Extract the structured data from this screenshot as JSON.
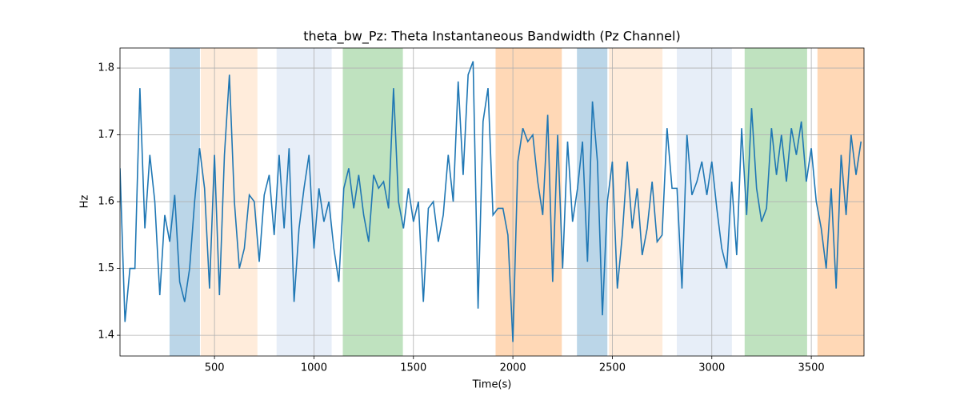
{
  "chart_data": {
    "type": "line",
    "title": "theta_bw_Pz: Theta Instantaneous Bandwidth (Pz Channel)",
    "x_label": "Time(s)",
    "y_label": "Hz",
    "xlim": [
      25,
      3765
    ],
    "ylim": [
      1.369,
      1.83
    ],
    "xticks": [
      500,
      1000,
      1500,
      2000,
      2500,
      3000,
      3500
    ],
    "yticks": [
      1.4,
      1.5,
      1.6,
      1.7,
      1.8
    ],
    "grid": true,
    "shaded_regions": [
      {
        "start": 274,
        "end": 427,
        "color": "#1f77b4",
        "opacity": 0.3
      },
      {
        "start": 431,
        "end": 716,
        "color": "#ff7f0e",
        "opacity": 0.15
      },
      {
        "start": 812,
        "end": 1089,
        "color": "#aec7e8",
        "opacity": 0.3
      },
      {
        "start": 1145,
        "end": 1447,
        "color": "#2ca02c",
        "opacity": 0.3
      },
      {
        "start": 1913,
        "end": 2246,
        "color": "#ff7f0e",
        "opacity": 0.3
      },
      {
        "start": 2322,
        "end": 2475,
        "color": "#1f77b4",
        "opacity": 0.3
      },
      {
        "start": 2483,
        "end": 2752,
        "color": "#ff7f0e",
        "opacity": 0.15
      },
      {
        "start": 2824,
        "end": 3101,
        "color": "#aec7e8",
        "opacity": 0.3
      },
      {
        "start": 3165,
        "end": 3479,
        "color": "#2ca02c",
        "opacity": 0.3
      },
      {
        "start": 3531,
        "end": 3765,
        "color": "#ff7f0e",
        "opacity": 0.3
      }
    ],
    "x": [
      25,
      50,
      75,
      100,
      125,
      150,
      175,
      200,
      225,
      250,
      275,
      300,
      325,
      350,
      375,
      400,
      425,
      450,
      475,
      500,
      525,
      550,
      575,
      600,
      625,
      650,
      675,
      700,
      725,
      750,
      775,
      800,
      825,
      850,
      875,
      900,
      925,
      950,
      975,
      1000,
      1025,
      1050,
      1075,
      1100,
      1125,
      1150,
      1175,
      1200,
      1225,
      1250,
      1275,
      1300,
      1325,
      1350,
      1375,
      1400,
      1425,
      1450,
      1475,
      1500,
      1525,
      1550,
      1575,
      1600,
      1625,
      1650,
      1675,
      1700,
      1725,
      1750,
      1775,
      1800,
      1825,
      1850,
      1875,
      1900,
      1925,
      1950,
      1975,
      2000,
      2025,
      2050,
      2075,
      2100,
      2125,
      2150,
      2175,
      2200,
      2225,
      2250,
      2275,
      2300,
      2325,
      2350,
      2375,
      2400,
      2425,
      2450,
      2475,
      2500,
      2525,
      2550,
      2575,
      2600,
      2625,
      2650,
      2675,
      2700,
      2725,
      2750,
      2775,
      2800,
      2825,
      2850,
      2875,
      2900,
      2925,
      2950,
      2975,
      3000,
      3025,
      3050,
      3075,
      3100,
      3125,
      3150,
      3175,
      3200,
      3225,
      3250,
      3275,
      3300,
      3325,
      3350,
      3375,
      3400,
      3425,
      3450,
      3475,
      3500,
      3525,
      3550,
      3575,
      3600,
      3625,
      3650,
      3675,
      3700,
      3725,
      3750
    ],
    "series": [
      {
        "name": "theta_bw_Pz",
        "color": "#1f77b4",
        "values": [
          1.65,
          1.42,
          1.5,
          1.5,
          1.77,
          1.56,
          1.67,
          1.6,
          1.46,
          1.58,
          1.54,
          1.61,
          1.48,
          1.45,
          1.5,
          1.6,
          1.68,
          1.62,
          1.47,
          1.67,
          1.46,
          1.67,
          1.79,
          1.6,
          1.5,
          1.53,
          1.61,
          1.6,
          1.51,
          1.61,
          1.64,
          1.55,
          1.67,
          1.56,
          1.68,
          1.45,
          1.56,
          1.62,
          1.67,
          1.53,
          1.62,
          1.57,
          1.6,
          1.53,
          1.48,
          1.62,
          1.65,
          1.59,
          1.64,
          1.58,
          1.54,
          1.64,
          1.62,
          1.63,
          1.59,
          1.77,
          1.6,
          1.56,
          1.62,
          1.57,
          1.6,
          1.45,
          1.59,
          1.6,
          1.54,
          1.58,
          1.67,
          1.6,
          1.78,
          1.64,
          1.79,
          1.81,
          1.44,
          1.72,
          1.77,
          1.58,
          1.59,
          1.59,
          1.55,
          1.39,
          1.66,
          1.71,
          1.69,
          1.7,
          1.63,
          1.58,
          1.73,
          1.48,
          1.7,
          1.5,
          1.69,
          1.57,
          1.62,
          1.69,
          1.51,
          1.75,
          1.66,
          1.43,
          1.6,
          1.66,
          1.47,
          1.55,
          1.66,
          1.56,
          1.62,
          1.52,
          1.56,
          1.63,
          1.54,
          1.55,
          1.71,
          1.62,
          1.62,
          1.47,
          1.7,
          1.61,
          1.63,
          1.66,
          1.61,
          1.66,
          1.59,
          1.53,
          1.5,
          1.63,
          1.52,
          1.71,
          1.58,
          1.74,
          1.62,
          1.57,
          1.59,
          1.71,
          1.64,
          1.7,
          1.63,
          1.71,
          1.67,
          1.72,
          1.63,
          1.68,
          1.6,
          1.56,
          1.5,
          1.62,
          1.47,
          1.67,
          1.58,
          1.7,
          1.64,
          1.69
        ]
      }
    ]
  }
}
